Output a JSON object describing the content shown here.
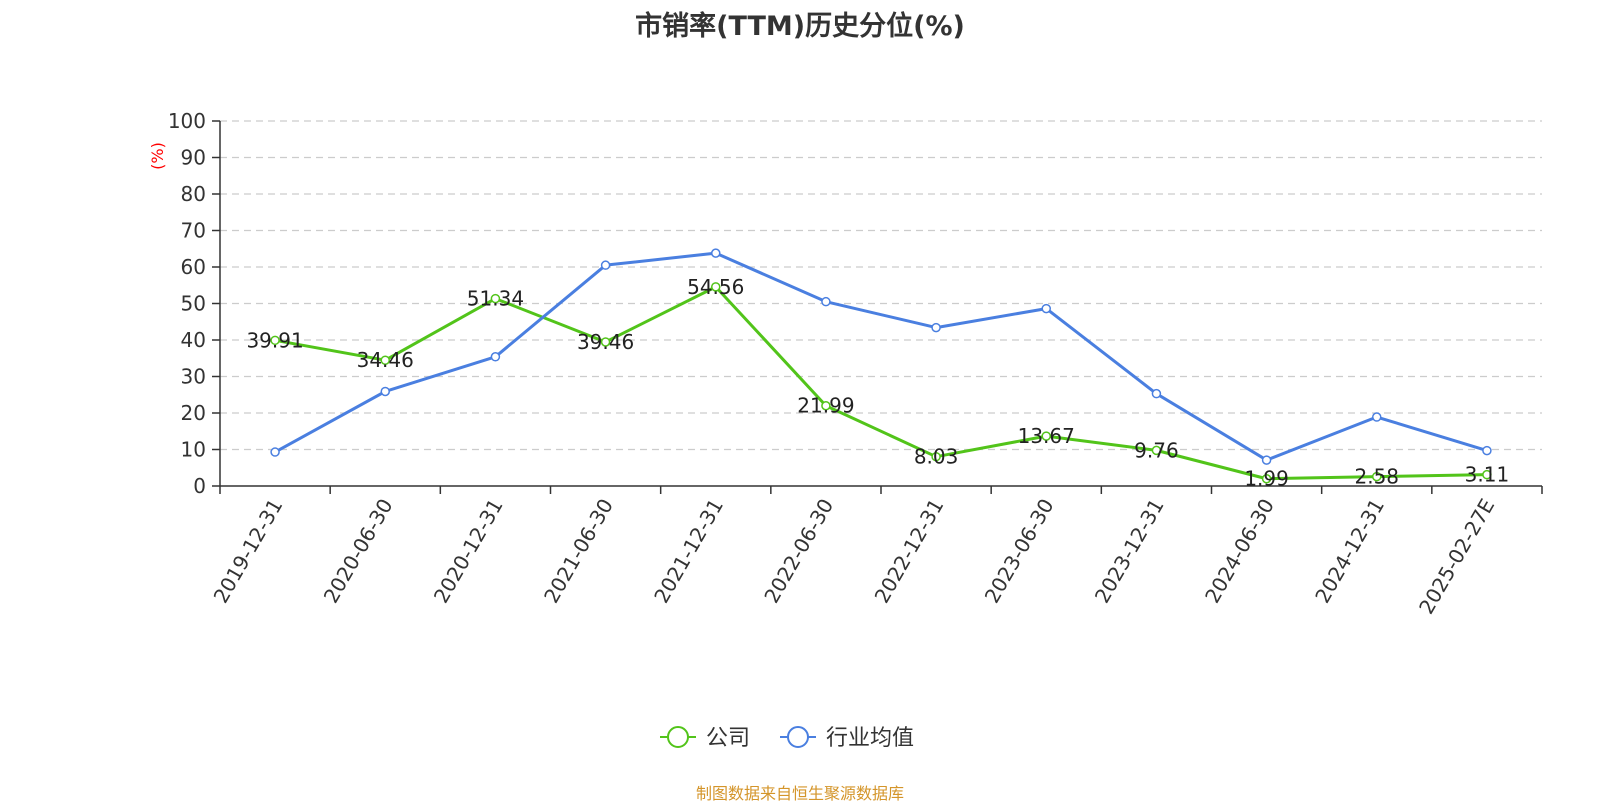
{
  "chart_data": {
    "type": "line",
    "title": "市销率(TTM)历史分位(%)",
    "ylabel": "(%)",
    "xlabel": "",
    "ylim": [
      0,
      100
    ],
    "yticks": [
      0,
      10,
      20,
      30,
      40,
      50,
      60,
      70,
      80,
      90,
      100
    ],
    "grid": true,
    "legend_position": "bottom-center",
    "categories": [
      "2019-12-31",
      "2020-06-30",
      "2020-12-31",
      "2021-06-30",
      "2021-12-31",
      "2022-06-30",
      "2022-12-31",
      "2023-06-30",
      "2023-12-31",
      "2024-06-30",
      "2024-12-31",
      "2025-02-27E"
    ],
    "series": [
      {
        "name": "公司",
        "color": "#52c41a",
        "values": [
          39.91,
          34.46,
          51.34,
          39.46,
          54.56,
          21.99,
          8.03,
          13.67,
          9.76,
          1.99,
          2.58,
          3.11
        ],
        "labels": [
          "39.91",
          "34.46",
          "51.34",
          "39.46",
          "54.56",
          "21.99",
          "8.03",
          "13.67",
          "9.76",
          "1.99",
          "2.58",
          "3.11"
        ]
      },
      {
        "name": "行业均值",
        "color": "#4a7fe0",
        "values": [
          9.3,
          25.9,
          35.4,
          60.5,
          63.8,
          50.5,
          43.4,
          48.6,
          25.3,
          7.1,
          18.9,
          9.7
        ]
      }
    ],
    "ylabel_color": "#ff0000"
  },
  "source_note": "制图数据来自恒生聚源数据库",
  "source_note_color": "#d4952a"
}
